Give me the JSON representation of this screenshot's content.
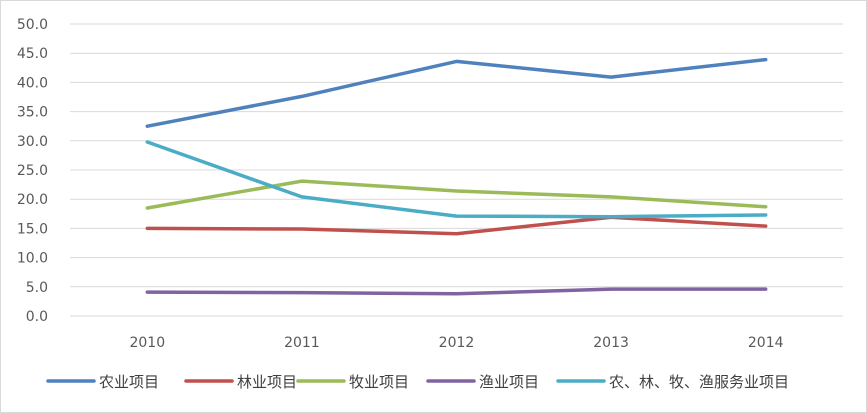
{
  "chart_data": {
    "type": "line",
    "title": "",
    "xlabel": "",
    "ylabel": "",
    "x": [
      "2010",
      "2011",
      "2012",
      "2013",
      "2014"
    ],
    "ylim": [
      0,
      50
    ],
    "yticks": [
      "0.0",
      "5.0",
      "10.0",
      "15.0",
      "20.0",
      "25.0",
      "30.0",
      "35.0",
      "40.0",
      "45.0",
      "50.0"
    ],
    "grid": true,
    "legend_position": "bottom",
    "series": [
      {
        "name": "农业项目",
        "color": "#4f81bd",
        "values": [
          32.5,
          37.6,
          43.6,
          40.9,
          43.9
        ]
      },
      {
        "name": "林业项目",
        "color": "#c0504d",
        "values": [
          15.0,
          14.9,
          14.1,
          16.9,
          15.4
        ]
      },
      {
        "name": "牧业项目",
        "color": "#9bbb59",
        "values": [
          18.5,
          23.1,
          21.4,
          20.4,
          18.7
        ]
      },
      {
        "name": "渔业项目",
        "color": "#8064a2",
        "values": [
          4.1,
          4.0,
          3.8,
          4.6,
          4.6
        ]
      },
      {
        "name": "农、林、牧、渔服务业项目",
        "color": "#4bacc6",
        "values": [
          29.8,
          20.4,
          17.1,
          17.0,
          17.3
        ]
      }
    ]
  }
}
